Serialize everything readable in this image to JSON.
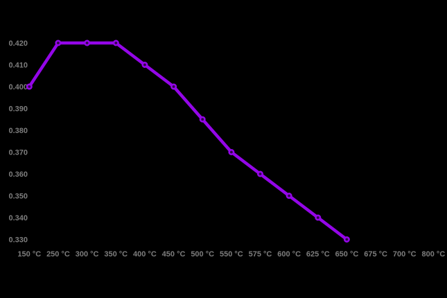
{
  "chart_data": {
    "type": "line",
    "title": "",
    "xlabel": "",
    "ylabel": "",
    "legend": "none",
    "grid": false,
    "categories": [
      "150 °C",
      "250 °C",
      "300 °C",
      "350 °C",
      "400 °C",
      "450 °C",
      "500 °C",
      "550 °C",
      "575 °C",
      "600 °C",
      "625 °C",
      "650 °C",
      "675 °C",
      "700 °C",
      "800 °C"
    ],
    "values": [
      0.4,
      0.42,
      0.42,
      0.42,
      0.41,
      0.4,
      0.385,
      0.37,
      0.36,
      0.35,
      0.34,
      0.33,
      null,
      null,
      null
    ],
    "y_ticks": [
      "0.420",
      "0.410",
      "0.400",
      "0.390",
      "0.380",
      "0.370",
      "0.360",
      "0.350",
      "0.340",
      "0.330"
    ],
    "ylim": [
      0.33,
      0.42
    ],
    "colors": {
      "background": "#000000",
      "line": "#9406E8",
      "marker_fill": "#30054A",
      "tick_text": "#7D7D7D"
    }
  }
}
